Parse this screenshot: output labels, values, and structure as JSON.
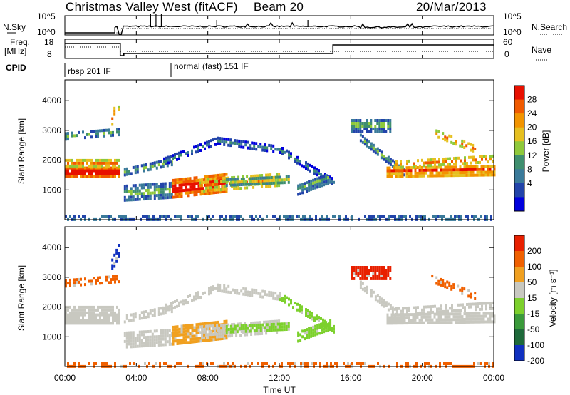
{
  "header": {
    "title": "Christmas Valley West (fitACF)",
    "beam": "Beam 20",
    "date": "20/Mar/2013"
  },
  "top_panels": {
    "nsky_label": "N.Sky",
    "nsearch_label": "N.Search",
    "nsky_ticks": [
      "10^5",
      "10^0"
    ],
    "nsearch_ticks": [
      "10^5",
      "10^0"
    ],
    "freq_label_1": "Freq.",
    "freq_label_2": "[MHz]",
    "freq_ticks": [
      "18",
      "8"
    ],
    "nave_label": "Nave",
    "nave_ticks": [
      "60",
      "0"
    ],
    "cpid_label": "CPID",
    "cpid_entries": [
      "rbsp 201 IF",
      "normal (fast) 151 IF"
    ]
  },
  "chart_data": [
    {
      "type": "heatmap",
      "name": "power",
      "ylabel": "Slant Range [km]",
      "y_ticks": [
        "1000",
        "2000",
        "3000",
        "4000"
      ],
      "ylim": [
        0,
        4700
      ],
      "colorbar_label": "Power [dB]",
      "colorbar_ticks": [
        "28",
        "24",
        "20",
        "16",
        "12",
        "8",
        "4"
      ],
      "colors": [
        "#0000dd",
        "#2244aa",
        "#3a7a9a",
        "#3f8f6f",
        "#8fc93b",
        "#e6c020",
        "#f29400",
        "#f05a00",
        "#e81000"
      ]
    },
    {
      "type": "heatmap",
      "name": "velocity",
      "ylabel": "Slant Range [km]",
      "y_ticks": [
        "1000",
        "2000",
        "3000",
        "4000"
      ],
      "ylim": [
        0,
        4700
      ],
      "colorbar_label": "Velocity [m s⁻¹]",
      "colorbar_ticks": [
        "200",
        "100",
        "50",
        "15",
        "-15",
        "-50",
        "-100",
        "-200"
      ],
      "colors": [
        "#1030c0",
        "#1e6a3a",
        "#3a9a3a",
        "#7cd02c",
        "#c8c8c0",
        "#f0a020",
        "#f06000",
        "#e82000"
      ]
    }
  ],
  "x_axis": {
    "label": "Time UT",
    "ticks": [
      "00:00",
      "04:00",
      "08:00",
      "12:00",
      "16:00",
      "20:00",
      "00:00"
    ]
  }
}
